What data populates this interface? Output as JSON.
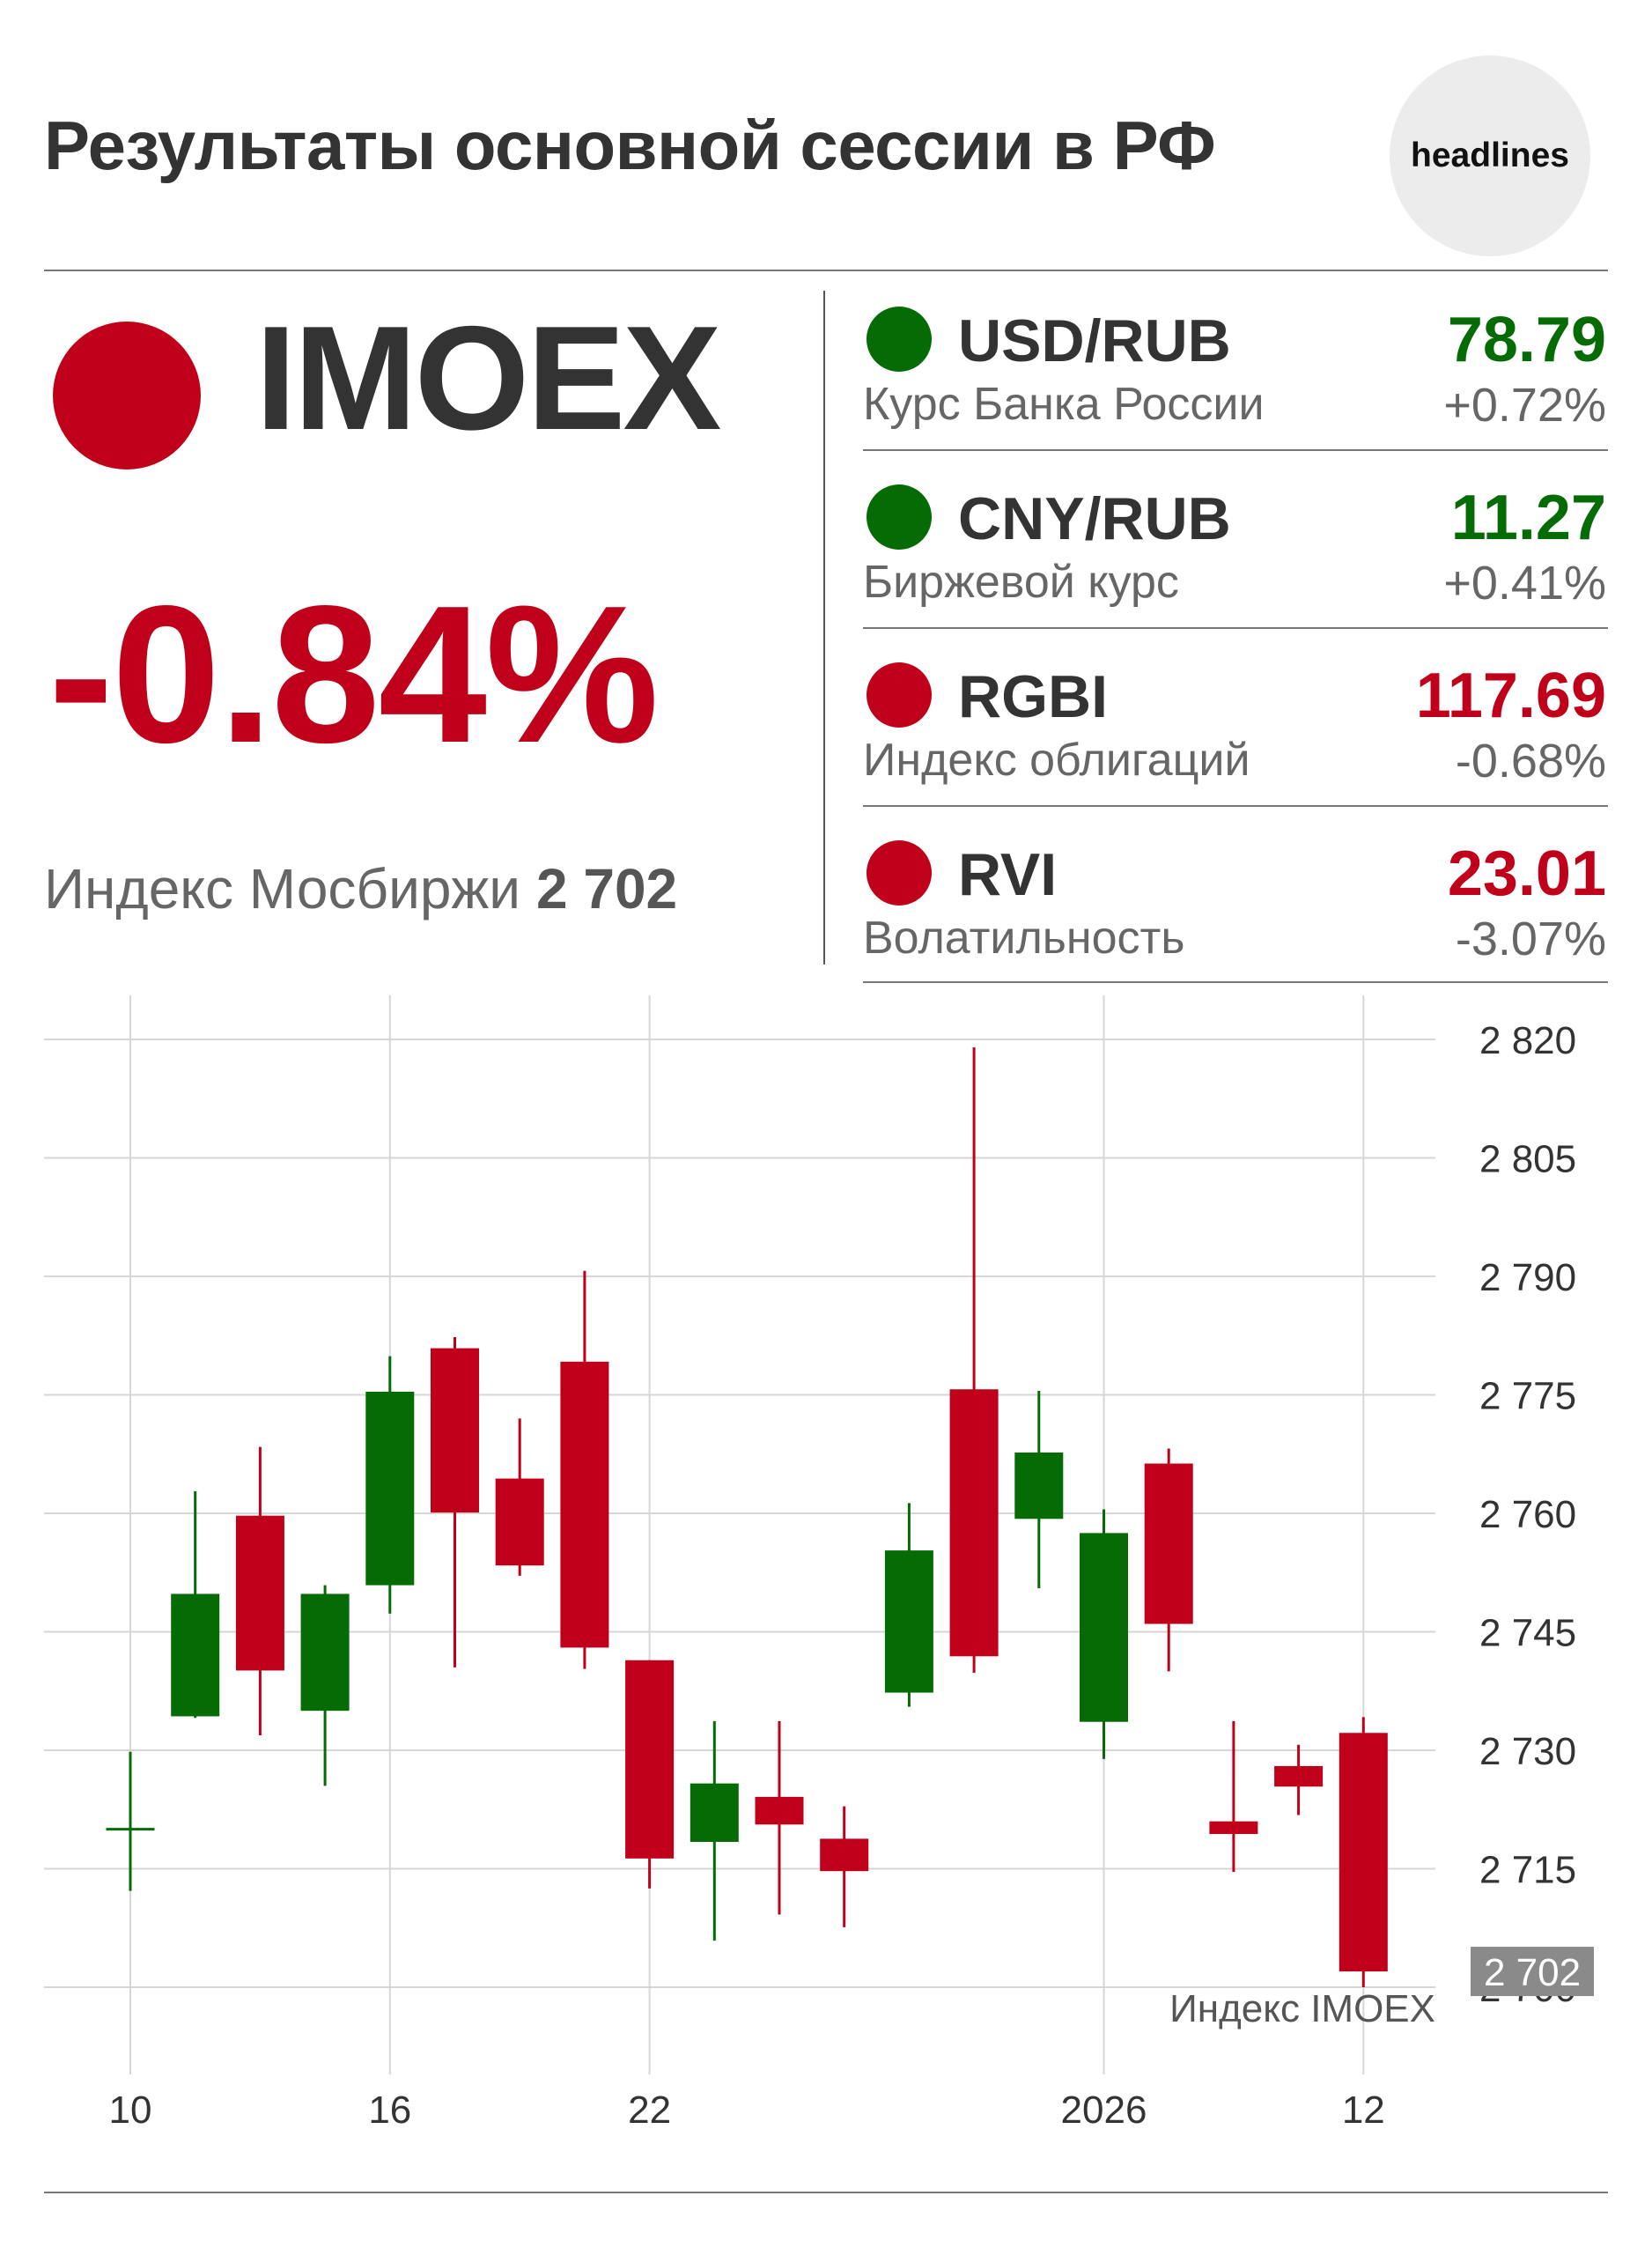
{
  "header": {
    "title": "Результаты основной сессии в РФ",
    "logo_text": "headlines"
  },
  "colors": {
    "green": "#056b05",
    "red": "#c0001a",
    "text": "#333333",
    "muted": "#666666"
  },
  "imoex": {
    "name": "IMOEX",
    "direction": "down",
    "change": "-0.84%",
    "caption": "Индекс Мосбиржи",
    "value": "2 702"
  },
  "quotes": [
    {
      "name": "USD/RUB",
      "subtitle": "Курс Банка России",
      "value": "78.79",
      "change": "+0.72%",
      "direction": "up"
    },
    {
      "name": "CNY/RUB",
      "subtitle": "Биржевой курс",
      "value": "11.27",
      "change": "+0.41%",
      "direction": "up"
    },
    {
      "name": "RGBI",
      "subtitle": "Индекс облигаций",
      "value": "117.69",
      "change": "-0.68%",
      "direction": "down"
    },
    {
      "name": "RVI",
      "subtitle": "Волатильность",
      "value": "23.01",
      "change": "-3.07%",
      "direction": "down"
    }
  ],
  "chart_data": {
    "type": "candlestick",
    "series_label": "Индекс IMOEX",
    "last_value_label": "2 702",
    "y_ticks": [
      2820,
      2805,
      2790,
      2775,
      2760,
      2745,
      2730,
      2715,
      2700
    ],
    "y_tick_labels": [
      "2 820",
      "2 805",
      "2 790",
      "2 775",
      "2 760",
      "2 745",
      "2 730",
      "2 715",
      "2 700"
    ],
    "ylim": [
      2694,
      2826
    ],
    "x_ticks": [
      {
        "index": 0,
        "label": "10"
      },
      {
        "index": 4,
        "label": "16"
      },
      {
        "index": 8,
        "label": "22"
      },
      {
        "index": 15,
        "label": "2026"
      },
      {
        "index": 19,
        "label": "12"
      }
    ],
    "grid": true,
    "candles": [
      {
        "o": 2720.0,
        "h": 2729.8,
        "l": 2712.2,
        "c": 2720.0
      },
      {
        "o": 2734.3,
        "h": 2762.8,
        "l": 2734.1,
        "c": 2749.8
      },
      {
        "o": 2759.7,
        "h": 2768.4,
        "l": 2731.9,
        "c": 2740.1
      },
      {
        "o": 2735.0,
        "h": 2750.9,
        "l": 2725.5,
        "c": 2749.8
      },
      {
        "o": 2750.9,
        "h": 2779.9,
        "l": 2747.3,
        "c": 2775.4
      },
      {
        "o": 2780.9,
        "h": 2782.3,
        "l": 2740.5,
        "c": 2760.1
      },
      {
        "o": 2764.4,
        "h": 2772.0,
        "l": 2752.1,
        "c": 2753.4
      },
      {
        "o": 2779.2,
        "h": 2790.7,
        "l": 2740.3,
        "c": 2743.0
      },
      {
        "o": 2741.4,
        "h": 2741.4,
        "l": 2712.5,
        "c": 2716.3
      },
      {
        "o": 2718.4,
        "h": 2733.7,
        "l": 2705.9,
        "c": 2725.8
      },
      {
        "o": 2724.1,
        "h": 2733.7,
        "l": 2709.2,
        "c": 2720.6
      },
      {
        "o": 2718.8,
        "h": 2722.9,
        "l": 2707.6,
        "c": 2714.7
      },
      {
        "o": 2737.3,
        "h": 2761.3,
        "l": 2735.5,
        "c": 2755.3
      },
      {
        "o": 2775.7,
        "h": 2819.0,
        "l": 2739.8,
        "c": 2741.9
      },
      {
        "o": 2759.3,
        "h": 2775.5,
        "l": 2750.5,
        "c": 2767.7
      },
      {
        "o": 2733.6,
        "h": 2760.5,
        "l": 2728.9,
        "c": 2757.5
      },
      {
        "o": 2766.3,
        "h": 2768.2,
        "l": 2740.0,
        "c": 2746.0
      },
      {
        "o": 2721.0,
        "h": 2733.7,
        "l": 2714.6,
        "c": 2719.4
      },
      {
        "o": 2728.0,
        "h": 2730.7,
        "l": 2721.8,
        "c": 2725.4
      },
      {
        "o": 2732.2,
        "h": 2734.2,
        "l": 2700.0,
        "c": 2702.0
      }
    ]
  }
}
